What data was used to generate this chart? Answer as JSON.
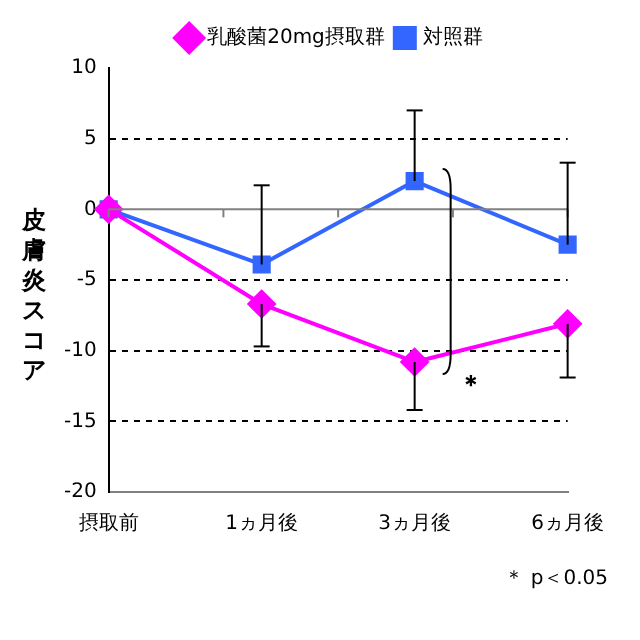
{
  "chart_data": {
    "type": "line",
    "ylabel": "皮膚炎スコア",
    "categories": [
      "摂取前",
      "1ヵ月後",
      "3ヵ月後",
      "6ヵ月後"
    ],
    "series": [
      {
        "name": "乳酸菌20mg摂取群",
        "color": "#ff00ff",
        "values": [
          0,
          -6.7,
          -10.8,
          -8.1
        ],
        "errors": [
          null,
          [
            -9.7,
            -6.7
          ],
          [
            -14.2,
            -10.8
          ],
          [
            -11.9,
            -8.1
          ]
        ],
        "marker": "diamond"
      },
      {
        "name": "対照群",
        "color": "#3366ff",
        "values": [
          0,
          -3.9,
          2.0,
          -2.5
        ],
        "errors": [
          null,
          [
            -3.9,
            1.7
          ],
          [
            2.0,
            7.0
          ],
          [
            -2.5,
            3.3
          ]
        ],
        "marker": "square"
      }
    ],
    "ylim": [
      -20,
      10
    ],
    "yticks": [
      -20,
      -15,
      -10,
      -5,
      0,
      5,
      10
    ],
    "grid": "y",
    "legend": "top",
    "annotations": [
      "＊",
      "＊ p＜0.05"
    ]
  }
}
